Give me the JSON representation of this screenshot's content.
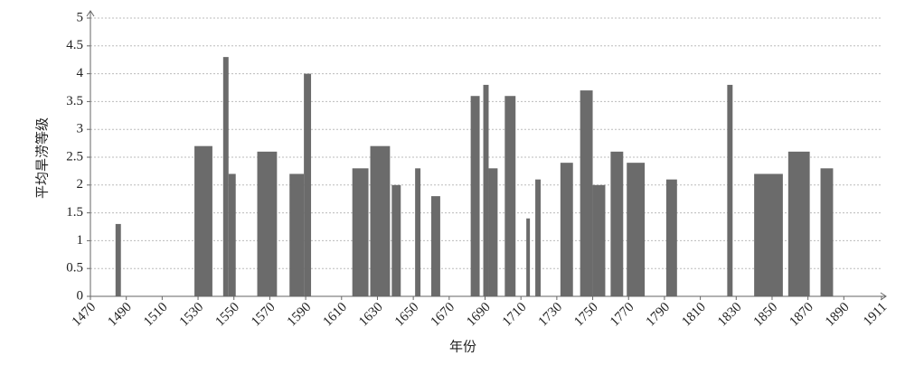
{
  "chart_data": {
    "type": "interval-bar",
    "x_label": "年份",
    "y_label": "平均旱涝等级",
    "x": [
      1484,
      1528,
      1544,
      1547,
      1563,
      1581,
      1589,
      1616,
      1626,
      1638,
      1651,
      1660,
      1682,
      1689,
      1692,
      1701,
      1713,
      1718,
      1732,
      1743,
      1750,
      1760,
      1769,
      1791,
      1825,
      1840,
      1859,
      1877
    ],
    "x_end": [
      1487,
      1538,
      1547,
      1551,
      1574,
      1589,
      1593,
      1625,
      1637,
      1643,
      1654,
      1665,
      1687,
      1692,
      1697,
      1707,
      1715,
      1721,
      1739,
      1750,
      1757,
      1767,
      1779,
      1797,
      1828,
      1856,
      1871,
      1884
    ],
    "values": [
      1.3,
      2.7,
      4.3,
      2.2,
      2.6,
      2.2,
      4.0,
      2.3,
      2.7,
      2.0,
      2.3,
      1.8,
      3.6,
      3.8,
      2.3,
      3.6,
      1.4,
      2.1,
      2.4,
      3.7,
      2.0,
      2.6,
      2.4,
      2.1,
      3.8,
      2.2,
      2.6,
      2.3
    ],
    "color": "#6b6b6b",
    "xlim": [
      1470,
      1911
    ],
    "xticks": [
      1470,
      1490,
      1510,
      1530,
      1550,
      1570,
      1590,
      1610,
      1630,
      1650,
      1670,
      1690,
      1710,
      1730,
      1750,
      1770,
      1790,
      1810,
      1830,
      1850,
      1870,
      1890,
      1911
    ],
    "ylim": [
      0,
      5
    ],
    "yticks": [
      0,
      0.5,
      1,
      1.5,
      2,
      2.5,
      3,
      3.5,
      4,
      4.5,
      5
    ],
    "grid": true
  }
}
